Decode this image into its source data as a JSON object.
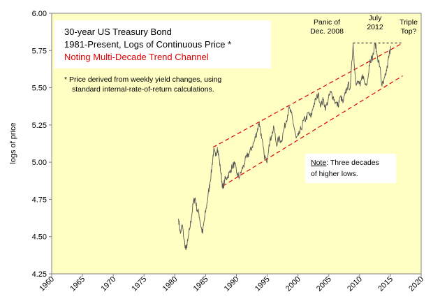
{
  "chart_data": {
    "type": "line",
    "title_lines": [
      "30-year US Treasury Bond",
      "1981-Present, Logs of Continuous Price *"
    ],
    "subtitle": "Noting Multi-Decade Trend Channel",
    "footnote_lines": [
      "*  Price derived from weekly yield changes, using",
      "standard internal-rate-of-return calculations."
    ],
    "ylabel": "logs of price",
    "xlabel": "",
    "xlim": [
      1960,
      2020
    ],
    "ylim": [
      4.25,
      6.0
    ],
    "x_ticks": [
      "1960",
      "1965",
      "1970",
      "1975",
      "1980",
      "1985",
      "1990",
      "1995",
      "2000",
      "2005",
      "2010",
      "2015",
      "2020"
    ],
    "y_ticks": [
      "4.25",
      "4.50",
      "4.75",
      "5.00",
      "5.25",
      "5.50",
      "5.75",
      "6.00"
    ],
    "grid": false,
    "series": [
      {
        "values": [
          [
            1980.6,
            4.62
          ],
          [
            1980.9,
            4.52
          ],
          [
            1981.2,
            4.58
          ],
          [
            1981.5,
            4.48
          ],
          [
            1981.8,
            4.41
          ],
          [
            1982.1,
            4.47
          ],
          [
            1982.4,
            4.55
          ],
          [
            1982.7,
            4.63
          ],
          [
            1983.0,
            4.73
          ],
          [
            1983.3,
            4.76
          ],
          [
            1983.6,
            4.68
          ],
          [
            1983.9,
            4.66
          ],
          [
            1984.2,
            4.58
          ],
          [
            1984.5,
            4.52
          ],
          [
            1984.8,
            4.62
          ],
          [
            1985.1,
            4.69
          ],
          [
            1985.4,
            4.78
          ],
          [
            1985.7,
            4.86
          ],
          [
            1986.0,
            4.96
          ],
          [
            1986.3,
            5.08
          ],
          [
            1986.6,
            5.04
          ],
          [
            1986.9,
            5.1
          ],
          [
            1987.2,
            5.02
          ],
          [
            1987.5,
            4.92
          ],
          [
            1987.8,
            4.82
          ],
          [
            1988.1,
            4.88
          ],
          [
            1988.5,
            4.9
          ],
          [
            1988.9,
            4.93
          ],
          [
            1989.3,
            4.97
          ],
          [
            1989.7,
            4.99
          ],
          [
            1990.1,
            4.92
          ],
          [
            1990.5,
            4.9
          ],
          [
            1990.9,
            4.95
          ],
          [
            1991.3,
            4.99
          ],
          [
            1991.7,
            5.04
          ],
          [
            1992.1,
            5.06
          ],
          [
            1992.5,
            5.1
          ],
          [
            1992.9,
            5.14
          ],
          [
            1993.3,
            5.2
          ],
          [
            1993.7,
            5.27
          ],
          [
            1994.1,
            5.16
          ],
          [
            1994.5,
            5.05
          ],
          [
            1994.9,
            5.0
          ],
          [
            1995.3,
            5.12
          ],
          [
            1995.7,
            5.18
          ],
          [
            1996.1,
            5.23
          ],
          [
            1996.5,
            5.12
          ],
          [
            1996.9,
            5.16
          ],
          [
            1997.3,
            5.14
          ],
          [
            1997.7,
            5.22
          ],
          [
            1998.1,
            5.28
          ],
          [
            1998.5,
            5.36
          ],
          [
            1998.9,
            5.33
          ],
          [
            1999.3,
            5.25
          ],
          [
            1999.7,
            5.16
          ],
          [
            2000.1,
            5.18
          ],
          [
            2000.5,
            5.22
          ],
          [
            2000.9,
            5.28
          ],
          [
            2001.3,
            5.29
          ],
          [
            2001.7,
            5.33
          ],
          [
            2002.1,
            5.3
          ],
          [
            2002.5,
            5.38
          ],
          [
            2002.9,
            5.42
          ],
          [
            2003.3,
            5.46
          ],
          [
            2003.7,
            5.38
          ],
          [
            2004.1,
            5.42
          ],
          [
            2004.5,
            5.36
          ],
          [
            2004.9,
            5.42
          ],
          [
            2005.3,
            5.47
          ],
          [
            2005.7,
            5.44
          ],
          [
            2006.1,
            5.4
          ],
          [
            2006.5,
            5.38
          ],
          [
            2006.9,
            5.44
          ],
          [
            2007.3,
            5.4
          ],
          [
            2007.7,
            5.46
          ],
          [
            2008.1,
            5.52
          ],
          [
            2008.5,
            5.5
          ],
          [
            2008.95,
            5.8
          ],
          [
            2009.2,
            5.62
          ],
          [
            2009.5,
            5.52
          ],
          [
            2009.8,
            5.54
          ],
          [
            2010.1,
            5.51
          ],
          [
            2010.5,
            5.59
          ],
          [
            2010.9,
            5.52
          ],
          [
            2011.3,
            5.55
          ],
          [
            2011.7,
            5.69
          ],
          [
            2012.1,
            5.7
          ],
          [
            2012.55,
            5.8
          ],
          [
            2012.9,
            5.71
          ],
          [
            2013.3,
            5.64
          ],
          [
            2013.6,
            5.52
          ],
          [
            2013.9,
            5.53
          ],
          [
            2014.2,
            5.58
          ],
          [
            2014.5,
            5.64
          ],
          [
            2014.8,
            5.72
          ],
          [
            2015.05,
            5.78
          ]
        ]
      }
    ],
    "trend_lines": [
      {
        "x": [
          1986.2,
          2017.0
        ],
        "y": [
          5.1,
          5.8
        ]
      },
      {
        "x": [
          1987.8,
          2017.0
        ],
        "y": [
          4.84,
          5.58
        ]
      },
      {
        "x": [
          2008.95,
          2017.0
        ],
        "y": [
          5.8,
          5.8
        ]
      }
    ],
    "annotations": [
      {
        "lines": [
          "Panic of",
          "Dec. 2008"
        ],
        "x": 2008.95,
        "y": 5.8
      },
      {
        "lines": [
          "July",
          "2012"
        ],
        "x": 2012.55,
        "y": 5.8
      },
      {
        "lines": [
          "Triple",
          "Top?"
        ],
        "x": 2015.05,
        "y": 5.78
      }
    ],
    "note": {
      "label": "Note",
      "text_lines": [
        ": Three decades",
        "of higher lows."
      ]
    }
  }
}
